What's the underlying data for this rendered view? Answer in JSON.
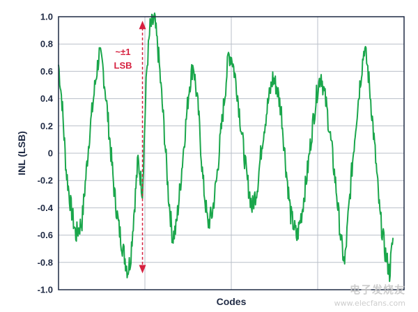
{
  "colors": {
    "line": "#1aa64b",
    "annotation": "#d6203f",
    "grid": "#b9bfc8",
    "axis": "#1f2a44",
    "text": "#1f2a44"
  },
  "watermark": {
    "text": "电子发烧友",
    "url": "www.elecfans.com"
  },
  "chart_data": {
    "type": "line",
    "title": "",
    "xlabel": "Codes",
    "ylabel": "INL (LSB)",
    "ylim": [
      -1.0,
      1.0
    ],
    "xlim": [
      0,
      1000
    ],
    "y_ticks": [
      "-1.0",
      "-0.8",
      "-0.6",
      "-0.4",
      "-0.2",
      "0",
      "0.2",
      "0.4",
      "0.6",
      "0.8",
      "1.0"
    ],
    "y_tick_values": [
      -1.0,
      -0.8,
      -0.6,
      -0.4,
      -0.2,
      0,
      0.2,
      0.4,
      0.6,
      0.8,
      1.0
    ],
    "x_tick_labels": [],
    "x_grid": [
      250,
      500,
      750
    ],
    "grid": true,
    "legend": "none",
    "annotation": {
      "text_line1": "~±1",
      "text_line2": "LSB",
      "x": 243,
      "y_from": -0.88,
      "y_to": 0.97
    },
    "series": [
      {
        "values_x": [
          0,
          10,
          22,
          35,
          50,
          68,
          90,
          108,
          118,
          128,
          138,
          150,
          162,
          175,
          188,
          200,
          208,
          218,
          230,
          243,
          255,
          265,
          278,
          290,
          305,
          318,
          330,
          340,
          352,
          365,
          378,
          390,
          405,
          418,
          432,
          445,
          458,
          470,
          482,
          492,
          502,
          515,
          530,
          545,
          560,
          575,
          590,
          605,
          620,
          632,
          645,
          658,
          672,
          690,
          705,
          722,
          735,
          750,
          760,
          775,
          790,
          805,
          818,
          828,
          838,
          848,
          860,
          872,
          885,
          895,
          905,
          918,
          930,
          945,
          958,
          968
        ],
        "values": [
          0.65,
          0.38,
          -0.12,
          -0.38,
          -0.6,
          -0.5,
          0.15,
          0.55,
          0.73,
          0.63,
          0.4,
          0.05,
          -0.3,
          -0.55,
          -0.72,
          -0.86,
          -0.78,
          -0.45,
          -0.05,
          -0.28,
          0.6,
          0.92,
          0.98,
          0.7,
          0.2,
          -0.3,
          -0.62,
          -0.55,
          -0.25,
          0.12,
          0.48,
          0.66,
          0.3,
          -0.2,
          -0.52,
          -0.44,
          -0.18,
          0.15,
          0.45,
          0.72,
          0.7,
          0.5,
          0.15,
          -0.18,
          -0.4,
          -0.25,
          0.1,
          0.35,
          0.55,
          0.48,
          0.3,
          -0.1,
          -0.45,
          -0.62,
          -0.42,
          -0.1,
          0.2,
          0.48,
          0.58,
          0.35,
          0.05,
          -0.3,
          -0.65,
          -0.82,
          -0.48,
          -0.15,
          0.2,
          0.5,
          0.78,
          0.62,
          0.35,
          -0.05,
          -0.45,
          -0.72,
          -0.88,
          -0.62
        ]
      }
    ]
  }
}
